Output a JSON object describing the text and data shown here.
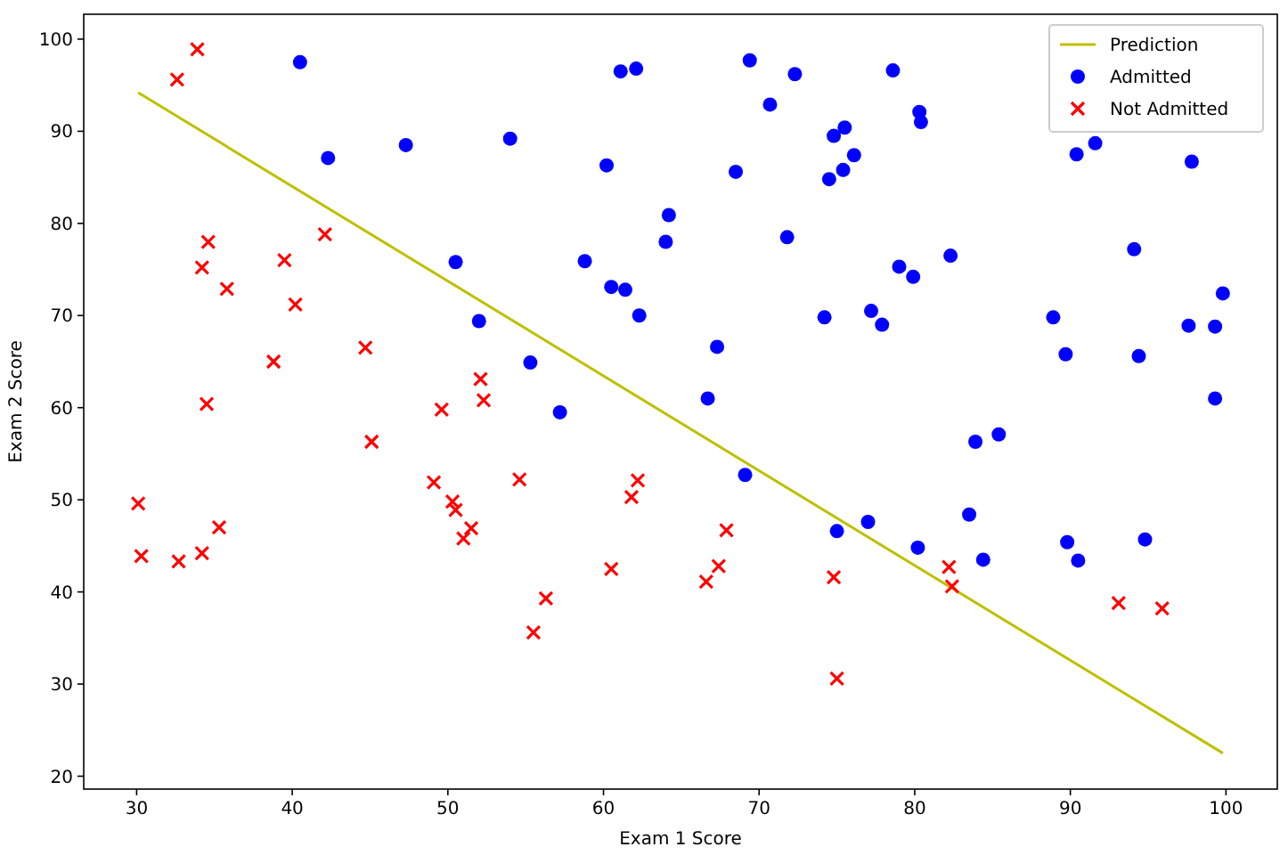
{
  "chart_data": {
    "type": "scatter",
    "xlabel": "Exam 1 Score",
    "ylabel": "Exam 2 Score",
    "xlim": [
      26.6,
      103.3
    ],
    "ylim": [
      18.6,
      102.7
    ],
    "xticks": [
      30,
      40,
      50,
      60,
      70,
      80,
      90,
      100
    ],
    "yticks": [
      20,
      30,
      40,
      50,
      60,
      70,
      80,
      90,
      100
    ],
    "grid": false,
    "legend": "top right",
    "series": [
      {
        "name": "Prediction",
        "type": "line",
        "color": "#bfbf00",
        "marker": "none",
        "line_style": "solid",
        "x": [
          30.1,
          99.8
        ],
        "values": [
          94.2,
          22.5
        ]
      },
      {
        "name": "Admitted",
        "color": "#0000ff",
        "marker": "circle",
        "x": [
          60.2,
          79.0,
          61.1,
          75.0,
          76.1,
          84.4,
          82.3,
          69.4,
          54.0,
          69.1,
          70.7,
          77.0,
          89.7,
          77.9,
          62.3,
          80.2,
          61.4,
          85.4,
          52.0,
          64.2,
          83.9,
          94.4,
          77.2,
          97.8,
          62.1,
          91.6,
          79.9,
          99.3,
          90.5,
          97.6,
          74.2,
          71.8,
          75.4,
          40.5,
          80.3,
          66.7,
          64.0,
          72.3,
          60.5,
          58.8,
          99.8,
          47.3,
          50.5,
          88.9,
          94.8,
          67.3,
          57.2,
          80.4,
          68.5,
          75.5,
          78.6,
          94.1,
          90.4,
          74.5,
          89.8,
          83.5,
          42.3,
          99.3,
          55.3,
          74.8
        ],
        "values": [
          86.3,
          75.3,
          96.5,
          46.6,
          87.4,
          43.5,
          76.5,
          97.7,
          89.2,
          52.7,
          92.9,
          47.6,
          65.8,
          69.0,
          70.0,
          44.8,
          72.8,
          57.1,
          69.4,
          80.9,
          56.3,
          65.6,
          70.5,
          86.7,
          96.8,
          88.7,
          74.2,
          61.0,
          43.4,
          68.9,
          69.8,
          78.5,
          85.8,
          97.5,
          92.1,
          61.0,
          78.0,
          96.2,
          73.1,
          75.9,
          72.4,
          88.5,
          75.8,
          69.8,
          45.7,
          66.6,
          59.5,
          91.0,
          85.6,
          90.4,
          96.6,
          77.2,
          87.5,
          84.8,
          45.4,
          48.4,
          87.1,
          68.8,
          64.9,
          89.5
        ]
      },
      {
        "name": "Not Admitted",
        "color": "#ff0000",
        "marker": "cross",
        "x": [
          34.6,
          30.3,
          35.8,
          45.1,
          95.9,
          75.0,
          39.5,
          67.9,
          67.4,
          50.5,
          34.2,
          93.1,
          61.8,
          38.8,
          52.1,
          40.2,
          54.6,
          33.9,
          74.8,
          34.2,
          51.5,
          82.4,
          51.0,
          62.2,
          34.5,
          50.3,
          49.6,
          32.6,
          35.3,
          56.3,
          30.1,
          44.7,
          66.6,
          49.1,
          32.7,
          60.5,
          82.2,
          42.1,
          52.3,
          55.5
        ],
        "values": [
          78.0,
          43.9,
          72.9,
          56.3,
          38.2,
          30.6,
          76.0,
          46.7,
          42.8,
          48.9,
          44.2,
          38.8,
          50.3,
          65.0,
          63.1,
          71.2,
          52.2,
          98.9,
          41.6,
          75.2,
          46.9,
          40.6,
          45.8,
          52.1,
          60.4,
          49.8,
          59.8,
          95.6,
          47.0,
          39.3,
          49.6,
          66.5,
          41.1,
          51.9,
          43.3,
          42.5,
          42.7,
          78.8,
          60.8,
          35.6
        ]
      }
    ]
  }
}
